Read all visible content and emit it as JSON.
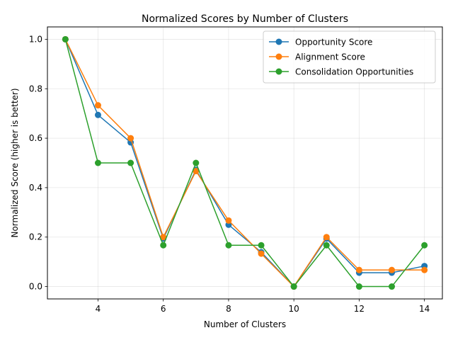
{
  "chart_data": {
    "type": "line",
    "title": "Normalized Scores by Number of Clusters",
    "xlabel": "Number of Clusters",
    "ylabel": "Normalized Score (higher is better)",
    "x": [
      3,
      4,
      5,
      6,
      7,
      8,
      9,
      10,
      11,
      12,
      13,
      14
    ],
    "xlim": [
      2.45,
      14.55
    ],
    "ylim": [
      -0.05,
      1.05
    ],
    "xticks": [
      4,
      6,
      8,
      10,
      12,
      14
    ],
    "yticks": [
      0.0,
      0.2,
      0.4,
      0.6,
      0.8,
      1.0
    ],
    "xtick_labels": [
      "4",
      "6",
      "8",
      "10",
      "12",
      "14"
    ],
    "ytick_labels": [
      "0.0",
      "0.2",
      "0.4",
      "0.6",
      "0.8",
      "1.0"
    ],
    "grid": true,
    "legend_position": "top-right",
    "series": [
      {
        "name": "Opportunity Score",
        "color": "#1f77b4",
        "values": [
          1.0,
          0.694,
          0.583,
          0.194,
          0.472,
          0.25,
          0.139,
          0.0,
          0.194,
          0.056,
          0.056,
          0.083
        ]
      },
      {
        "name": "Alignment Score",
        "color": "#ff7f0e",
        "values": [
          1.0,
          0.733,
          0.6,
          0.2,
          0.467,
          0.267,
          0.133,
          0.0,
          0.2,
          0.067,
          0.067,
          0.067
        ]
      },
      {
        "name": "Consolidation Opportunities",
        "color": "#2ca02c",
        "values": [
          1.0,
          0.5,
          0.5,
          0.167,
          0.5,
          0.167,
          0.167,
          0.0,
          0.167,
          0.0,
          0.0,
          0.167
        ]
      }
    ]
  }
}
